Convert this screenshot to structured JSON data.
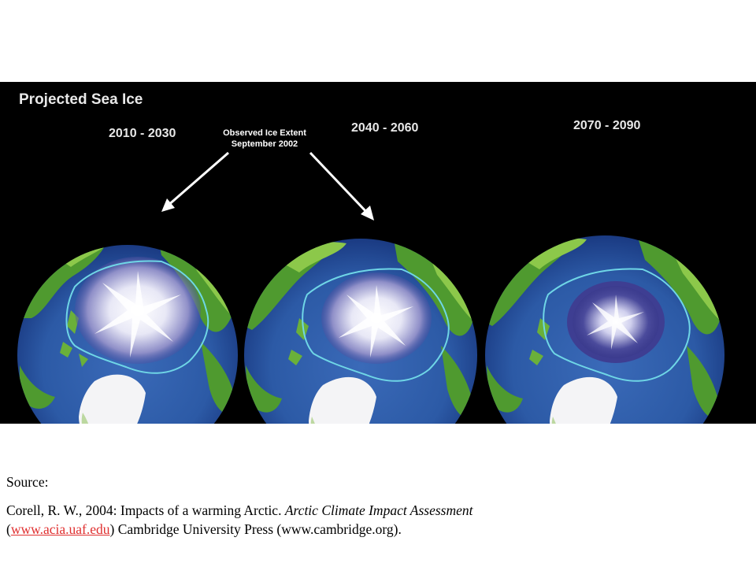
{
  "figure": {
    "title": "Projected Sea Ice",
    "panels": [
      {
        "period": "2010 - 2030"
      },
      {
        "period": "2040 - 2060"
      },
      {
        "period": "2070 - 2090"
      }
    ],
    "annotation_line1": "Observed Ice Extent",
    "annotation_line2": "September 2002",
    "colors": {
      "background": "#000000",
      "ocean": "#2f5aa8",
      "deep_ocean": "#1c3480",
      "land": "#4f9a2f",
      "land_light": "#8cc84a",
      "ice": "#f2f2fb",
      "ice_shadow": "#5a5aa8",
      "observed_extent_line": "#6fd6e6",
      "arrow": "#ffffff"
    }
  },
  "caption": {
    "source_label": "Source:",
    "citation_part1": "Corell, R. W., 2004:  Impacts of a warming Arctic.  ",
    "citation_italic": "Arctic Climate Impact Assessment",
    "citation_part2": " (",
    "link_text": "www.acia.uaf.edu",
    "citation_part3": ")  Cambridge University Press (www.cambridge.org).",
    "link_color": "#e03030"
  }
}
